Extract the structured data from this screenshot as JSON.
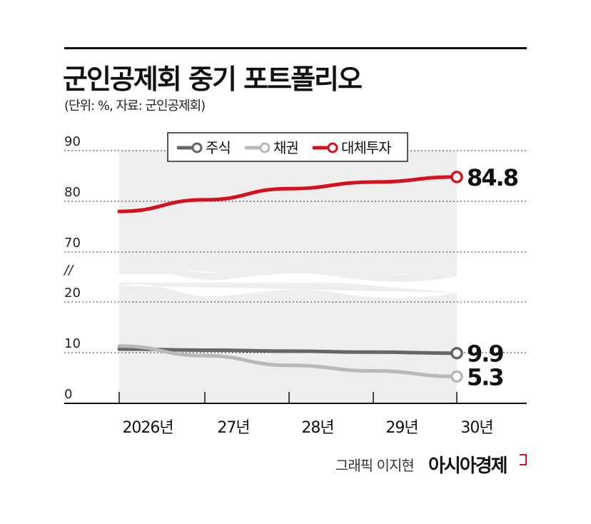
{
  "header": {
    "title": "군인공제회 중기 포트폴리오",
    "subtitle": "(단위: %, 자료: 군인공제회)"
  },
  "footer": {
    "credit": "그래픽 이지현",
    "brand": "아시아경제"
  },
  "chart_data": {
    "type": "line",
    "categories": [
      "2026년",
      "27년",
      "28년",
      "29년",
      "30년"
    ],
    "y_tick_labels": [
      "0",
      "10",
      "20",
      "70",
      "80",
      "90"
    ],
    "axis_break": "//",
    "ylim": [
      0,
      90
    ],
    "grid": true,
    "legend_position": "top-center",
    "series": [
      {
        "name": "주식",
        "color": "#666666",
        "values": [
          10.7,
          10.5,
          10.3,
          10.1,
          9.9
        ],
        "end_label": "9.9"
      },
      {
        "name": "채권",
        "color": "#b8b8b8",
        "values": [
          11.3,
          9.4,
          7.5,
          6.4,
          5.3
        ],
        "end_label": "5.3"
      },
      {
        "name": "대체투자",
        "color": "#d6101c",
        "values": [
          78.0,
          80.3,
          82.5,
          83.8,
          84.8
        ],
        "end_label": "84.8"
      }
    ]
  }
}
